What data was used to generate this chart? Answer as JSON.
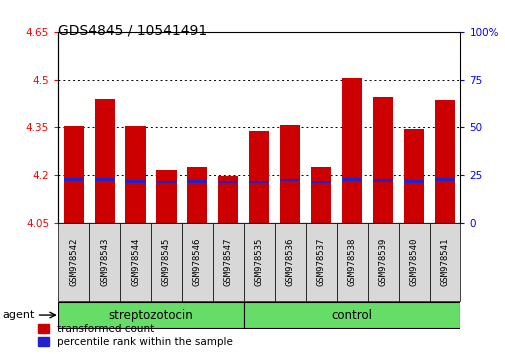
{
  "title": "GDS4845 / 10541491",
  "samples": [
    "GSM978542",
    "GSM978543",
    "GSM978544",
    "GSM978545",
    "GSM978546",
    "GSM978547",
    "GSM978535",
    "GSM978536",
    "GSM978537",
    "GSM978538",
    "GSM978539",
    "GSM978540",
    "GSM978541"
  ],
  "groups": [
    "streptozotocin",
    "streptozotocin",
    "streptozotocin",
    "streptozotocin",
    "streptozotocin",
    "streptozotocin",
    "control",
    "control",
    "control",
    "control",
    "control",
    "control",
    "control"
  ],
  "bar_tops": [
    4.355,
    4.44,
    4.355,
    4.215,
    4.225,
    4.198,
    4.34,
    4.357,
    4.225,
    4.505,
    4.445,
    4.345,
    4.435
  ],
  "blue_positions": [
    4.182,
    4.183,
    4.177,
    4.175,
    4.176,
    4.175,
    4.175,
    4.181,
    4.175,
    4.182,
    4.18,
    4.177,
    4.182
  ],
  "blue_heights": [
    0.008,
    0.008,
    0.008,
    0.008,
    0.008,
    0.008,
    0.008,
    0.008,
    0.008,
    0.008,
    0.008,
    0.008,
    0.008
  ],
  "bar_bottom": 4.05,
  "ylim": [
    4.05,
    4.65
  ],
  "yticks": [
    4.05,
    4.2,
    4.35,
    4.5,
    4.65
  ],
  "ytick_labels": [
    "4.05",
    "4.2",
    "4.35",
    "4.5",
    "4.65"
  ],
  "right_yticks": [
    0,
    25,
    50,
    75,
    100
  ],
  "right_ytick_labels": [
    "0",
    "25",
    "50",
    "75",
    "100%"
  ],
  "bar_color": "#cc0000",
  "blue_color": "#2222cc",
  "bar_width": 0.65,
  "green_color": "#66dd66",
  "group_label_fontsize": 8.5,
  "tick_fontsize": 7.5,
  "title_fontsize": 10,
  "background_color": "#ffffff",
  "plot_bg_color": "#ffffff",
  "agent_label": "agent",
  "legend_items": [
    "transformed count",
    "percentile rank within the sample"
  ],
  "legend_colors": [
    "#cc0000",
    "#2222cc"
  ],
  "n_strep": 6,
  "n_ctrl": 7
}
